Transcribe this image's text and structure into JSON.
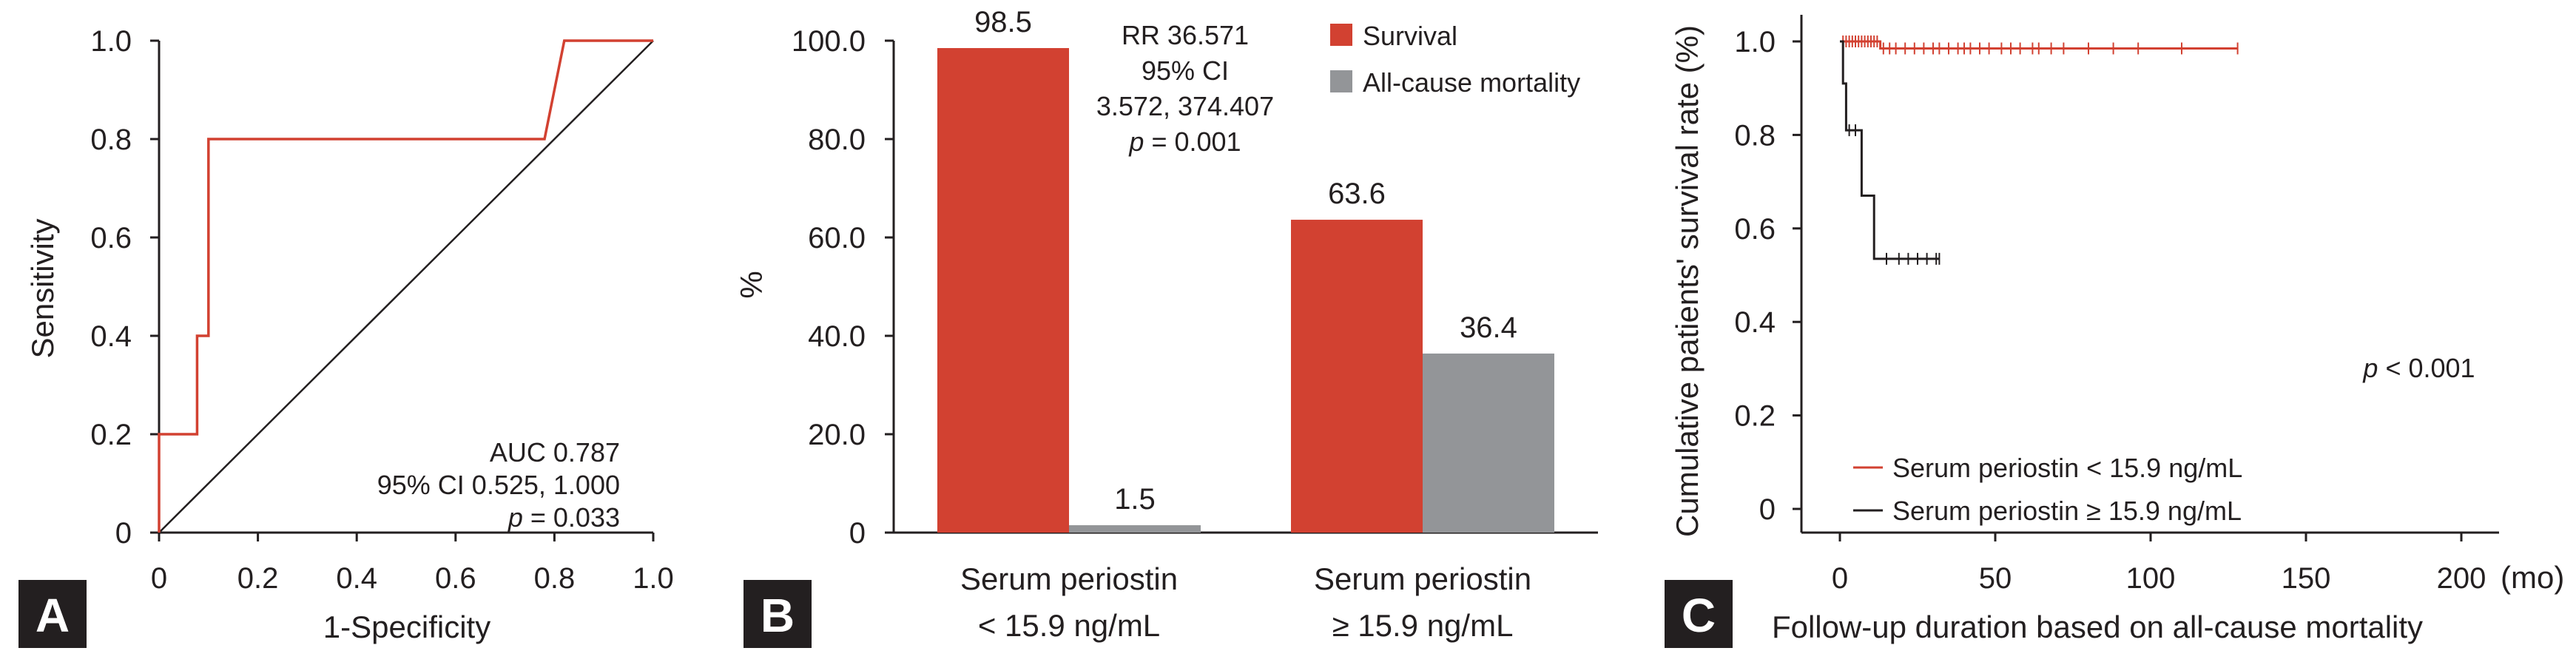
{
  "colors": {
    "red": "#d24131",
    "gray": "#939598",
    "ink": "#231f20",
    "diagonal": "#231f20"
  },
  "chart_data": [
    {
      "panel": "A",
      "type": "line",
      "title": "",
      "xlabel": "1-Specificity",
      "ylabel": "Sensitivity",
      "xlim": [
        0,
        1
      ],
      "ylim": [
        0,
        1
      ],
      "xticks": [
        "0",
        "0.2",
        "0.4",
        "0.6",
        "0.8",
        "1.0"
      ],
      "yticks": [
        "0",
        "0.2",
        "0.4",
        "0.6",
        "0.8",
        "1.0"
      ],
      "roc_points": [
        [
          0,
          0
        ],
        [
          0,
          0.2
        ],
        [
          0.077,
          0.2
        ],
        [
          0.077,
          0.4
        ],
        [
          0.1,
          0.4
        ],
        [
          0.1,
          0.8
        ],
        [
          0.78,
          0.8
        ],
        [
          0.82,
          1.0
        ],
        [
          1.0,
          1.0
        ]
      ],
      "reference_line": [
        [
          0,
          0
        ],
        [
          1,
          1
        ]
      ],
      "annotations": {
        "auc": "AUC 0.787",
        "ci": "95% CI 0.525, 1.000",
        "p_italic": "p",
        "p_rest": " = 0.033"
      }
    },
    {
      "panel": "B",
      "type": "bar",
      "ylabel": "%",
      "ylim": [
        0,
        100
      ],
      "yticks": [
        "0",
        "20.0",
        "40.0",
        "60.0",
        "80.0",
        "100.0"
      ],
      "groups": [
        {
          "line1": "Serum periostin",
          "line2": "< 15.9 ng/mL"
        },
        {
          "line1": "Serum periostin",
          "line2": "≥ 15.9 ng/mL"
        }
      ],
      "series": [
        {
          "name": "Survival",
          "values": [
            98.5,
            63.6
          ],
          "labels": [
            "98.5",
            "63.6"
          ]
        },
        {
          "name": "All-cause mortality",
          "values": [
            1.5,
            36.4
          ],
          "labels": [
            "1.5",
            "36.4"
          ]
        }
      ],
      "annotations": {
        "rr": "RR 36.571",
        "ci_title": "95% CI",
        "ci": "3.572, 374.407",
        "p_italic": "p",
        "p_rest": " = 0.001"
      }
    },
    {
      "panel": "C",
      "type": "line",
      "xlabel": "Follow-up duration based on all-cause mortality",
      "ylabel": "Cumulative patients' survival rate (%)",
      "xlim": [
        0,
        210
      ],
      "ylim": [
        -0.05,
        1.05
      ],
      "xticks": [
        "0",
        "50",
        "100",
        "150",
        "200"
      ],
      "x_unit": "(mo)",
      "yticks": [
        "0",
        "0.2",
        "0.4",
        "0.6",
        "0.8",
        "1.0"
      ],
      "series": [
        {
          "name": "Serum periostin < 15.9 ng/mL",
          "steps": [
            [
              0,
              1.0
            ],
            [
              13,
              1.0
            ],
            [
              13,
              0.985
            ],
            [
              128,
              0.985
            ]
          ],
          "censor_x": [
            1,
            2,
            3,
            4,
            5,
            6,
            7,
            8,
            9,
            10,
            11,
            12,
            14,
            16,
            18,
            21,
            24,
            27,
            30,
            32,
            35,
            38,
            40,
            42,
            45,
            48,
            52,
            55,
            58,
            62,
            64,
            68,
            72,
            80,
            88,
            96,
            110,
            128
          ]
        },
        {
          "name": "Serum periostin ≥ 15.9 ng/mL",
          "steps": [
            [
              0,
              1.0
            ],
            [
              1,
              1.0
            ],
            [
              1,
              0.91
            ],
            [
              2,
              0.91
            ],
            [
              2,
              0.81
            ],
            [
              7,
              0.81
            ],
            [
              7,
              0.67
            ],
            [
              11,
              0.67
            ],
            [
              11,
              0.535
            ],
            [
              32,
              0.535
            ]
          ],
          "censor_x": [
            3,
            5,
            15,
            19,
            22,
            25,
            28,
            31,
            32
          ]
        }
      ],
      "annotations": {
        "p_italic": "p",
        "p_rest": " < 0.001"
      }
    }
  ],
  "panel_badges": [
    "A",
    "B",
    "C"
  ]
}
